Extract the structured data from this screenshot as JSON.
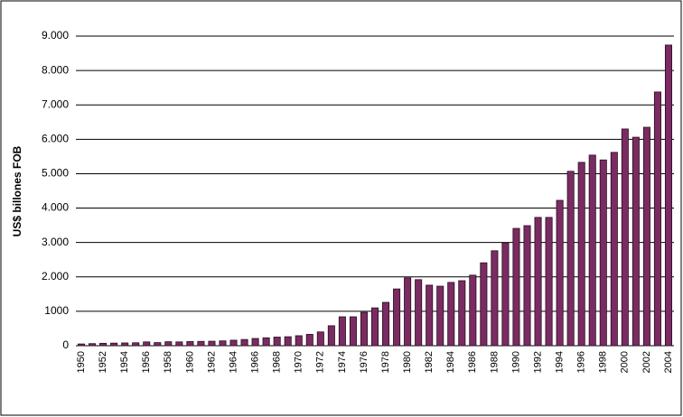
{
  "chart_data": {
    "type": "bar",
    "y_axis_label": "US$ billones FOB",
    "categories": [
      "1950",
      null,
      "1952",
      null,
      "1954",
      null,
      "1956",
      null,
      "1958",
      null,
      "1960",
      null,
      "1962",
      null,
      "1964",
      null,
      "1966",
      null,
      "1968",
      null,
      "1970",
      null,
      "1972",
      null,
      "1974",
      null,
      "1976",
      null,
      "1978",
      null,
      "1980",
      null,
      "1982",
      null,
      "1984",
      null,
      "1986",
      null,
      "1988",
      null,
      "1990",
      null,
      "1992",
      null,
      "1994",
      null,
      "1996",
      null,
      "1998",
      null,
      "2000",
      null,
      "2002",
      null,
      "2004"
    ],
    "values": [
      50,
      60,
      70,
      75,
      80,
      85,
      110,
      90,
      115,
      110,
      120,
      125,
      130,
      140,
      160,
      180,
      210,
      230,
      250,
      260,
      290,
      330,
      400,
      580,
      840,
      840,
      970,
      1100,
      1260,
      1650,
      1970,
      1920,
      1760,
      1730,
      1840,
      1890,
      2050,
      2410,
      2760,
      2990,
      3410,
      3490,
      3730,
      3730,
      4225,
      5070,
      5330,
      5540,
      5400,
      5620,
      6300,
      6060,
      6350,
      7375,
      8740
    ],
    "color": "#7a2c62",
    "ylim": [
      0,
      9000
    ],
    "yticks": [
      0,
      1000,
      {
        "value": 2000,
        "label": "2.000"
      },
      {
        "value": 3000,
        "label": "3.000"
      },
      {
        "value": 4000,
        "label": "4.000"
      },
      {
        "value": 5000,
        "label": "5.000"
      },
      {
        "value": 6000,
        "label": "6.000"
      },
      {
        "value": 7000,
        "label": "7.000"
      },
      {
        "value": 8000,
        "label": "8.000"
      },
      {
        "value": 9000,
        "label": "9.000"
      }
    ],
    "grid": true
  }
}
